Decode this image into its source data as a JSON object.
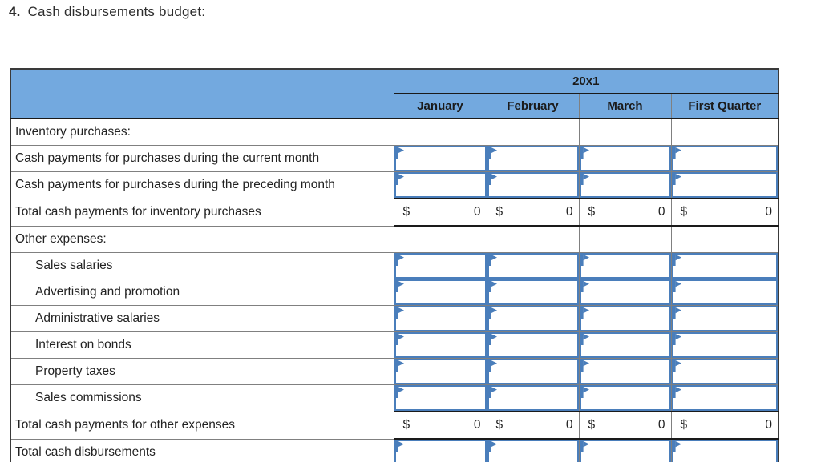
{
  "title": {
    "number": "4.",
    "text": "Cash disbursements budget:"
  },
  "table": {
    "year_header": "20x1",
    "columns": [
      "January",
      "February",
      "March",
      "First Quarter"
    ],
    "rows": [
      {
        "type": "section",
        "label": "Inventory purchases:"
      },
      {
        "type": "input",
        "label": "Cash payments for purchases during the current month",
        "indent": false,
        "values": [
          "",
          "",
          "",
          ""
        ]
      },
      {
        "type": "input",
        "label": "Cash payments for purchases during the preceding month",
        "indent": false,
        "values": [
          "",
          "",
          "",
          ""
        ]
      },
      {
        "type": "total",
        "label": "Total cash payments for inventory purchases",
        "values": [
          {
            "currency": "$",
            "amount": "0"
          },
          {
            "currency": "$",
            "amount": "0"
          },
          {
            "currency": "$",
            "amount": "0"
          },
          {
            "currency": "$",
            "amount": "0"
          }
        ]
      },
      {
        "type": "section",
        "label": "Other expenses:"
      },
      {
        "type": "input",
        "label": "Sales salaries",
        "indent": true,
        "values": [
          "",
          "",
          "",
          ""
        ]
      },
      {
        "type": "input",
        "label": "Advertising and promotion",
        "indent": true,
        "values": [
          "",
          "",
          "",
          ""
        ]
      },
      {
        "type": "input",
        "label": "Administrative salaries",
        "indent": true,
        "values": [
          "",
          "",
          "",
          ""
        ]
      },
      {
        "type": "input",
        "label": "Interest on bonds",
        "indent": true,
        "values": [
          "",
          "",
          "",
          ""
        ]
      },
      {
        "type": "input",
        "label": "Property taxes",
        "indent": true,
        "values": [
          "",
          "",
          "",
          ""
        ]
      },
      {
        "type": "input",
        "label": "Sales commissions",
        "indent": true,
        "values": [
          "",
          "",
          "",
          ""
        ]
      },
      {
        "type": "total",
        "label": "Total cash payments for other expenses",
        "values": [
          {
            "currency": "$",
            "amount": "0"
          },
          {
            "currency": "$",
            "amount": "0"
          },
          {
            "currency": "$",
            "amount": "0"
          },
          {
            "currency": "$",
            "amount": "0"
          }
        ]
      },
      {
        "type": "input",
        "label": "Total cash disbursements",
        "indent": false,
        "values": [
          "",
          "",
          "",
          ""
        ]
      }
    ]
  },
  "colors": {
    "header_blue": "#73a9df",
    "input_border_blue": "#4a7ebb",
    "grid_line": "#808080",
    "strong_line": "#1a1a1a",
    "outer_border": "#3a3a3a",
    "text": "#222222"
  }
}
